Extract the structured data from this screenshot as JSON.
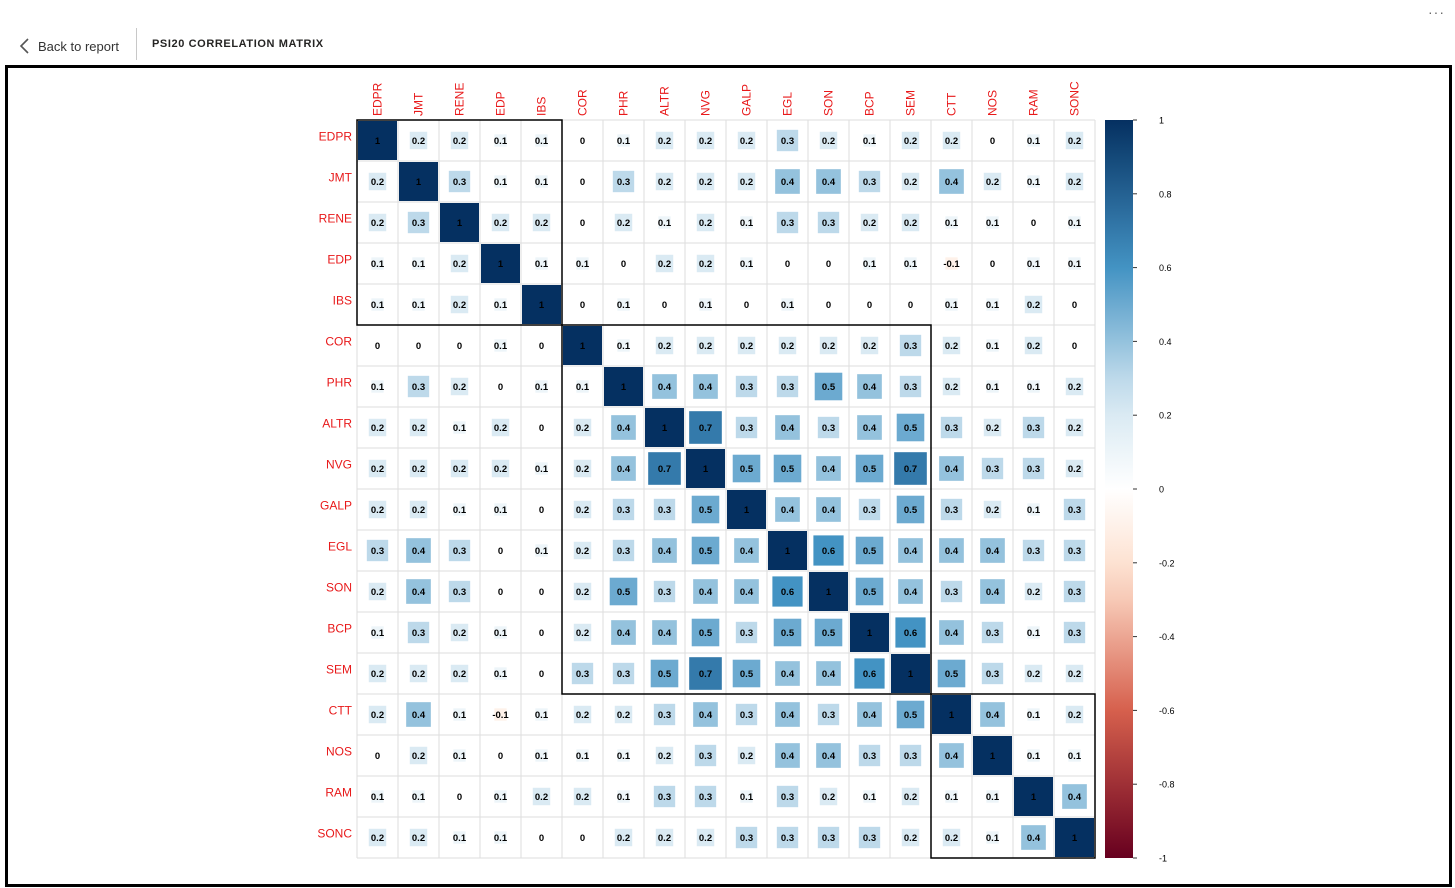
{
  "header": {
    "back_label": "Back to report",
    "title": "PSI20 CORRELATION MATRIX",
    "more_label": "···"
  },
  "chart_data": {
    "type": "heatmap",
    "variables": [
      "EDPR",
      "JMT",
      "RENE",
      "EDP",
      "IBS",
      "COR",
      "PHR",
      "ALTR",
      "NVG",
      "GALP",
      "EGL",
      "SON",
      "BCP",
      "SEM",
      "CTT",
      "NOS",
      "RAM",
      "SONC"
    ],
    "matrix": [
      [
        1,
        0.2,
        0.2,
        0.1,
        0.1,
        0,
        0.1,
        0.2,
        0.2,
        0.2,
        0.3,
        0.2,
        0.1,
        0.2,
        0.2,
        0,
        0.1,
        0.2
      ],
      [
        0.2,
        1,
        0.3,
        0.1,
        0.1,
        0,
        0.3,
        0.2,
        0.2,
        0.2,
        0.4,
        0.4,
        0.3,
        0.2,
        0.4,
        0.2,
        0.1,
        0.2
      ],
      [
        0.2,
        0.3,
        1,
        0.2,
        0.2,
        0,
        0.2,
        0.1,
        0.2,
        0.1,
        0.3,
        0.3,
        0.2,
        0.2,
        0.1,
        0.1,
        0,
        0.1
      ],
      [
        0.1,
        0.1,
        0.2,
        1,
        0.1,
        0.1,
        0,
        0.2,
        0.2,
        0.1,
        0,
        0,
        0.1,
        0.1,
        -0.1,
        0,
        0.1,
        0.1
      ],
      [
        0.1,
        0.1,
        0.2,
        0.1,
        1,
        0,
        0.1,
        0,
        0.1,
        0,
        0.1,
        0,
        0,
        0,
        0.1,
        0.1,
        0.2,
        0
      ],
      [
        0,
        0,
        0,
        0.1,
        0,
        1,
        0.1,
        0.2,
        0.2,
        0.2,
        0.2,
        0.2,
        0.2,
        0.3,
        0.2,
        0.1,
        0.2,
        0
      ],
      [
        0.1,
        0.3,
        0.2,
        0,
        0.1,
        0.1,
        1,
        0.4,
        0.4,
        0.3,
        0.3,
        0.5,
        0.4,
        0.3,
        0.2,
        0.1,
        0.1,
        0.2
      ],
      [
        0.2,
        0.2,
        0.1,
        0.2,
        0,
        0.2,
        0.4,
        1,
        0.7,
        0.3,
        0.4,
        0.3,
        0.4,
        0.5,
        0.3,
        0.2,
        0.3,
        0.2
      ],
      [
        0.2,
        0.2,
        0.2,
        0.2,
        0.1,
        0.2,
        0.4,
        0.7,
        1,
        0.5,
        0.5,
        0.4,
        0.5,
        0.7,
        0.4,
        0.3,
        0.3,
        0.2
      ],
      [
        0.2,
        0.2,
        0.1,
        0.1,
        0,
        0.2,
        0.3,
        0.3,
        0.5,
        1,
        0.4,
        0.4,
        0.3,
        0.5,
        0.3,
        0.2,
        0.1,
        0.3
      ],
      [
        0.3,
        0.4,
        0.3,
        0,
        0.1,
        0.2,
        0.3,
        0.4,
        0.5,
        0.4,
        1,
        0.6,
        0.5,
        0.4,
        0.4,
        0.4,
        0.3,
        0.3
      ],
      [
        0.2,
        0.4,
        0.3,
        0,
        0,
        0.2,
        0.5,
        0.3,
        0.4,
        0.4,
        0.6,
        1,
        0.5,
        0.4,
        0.3,
        0.4,
        0.2,
        0.3
      ],
      [
        0.1,
        0.3,
        0.2,
        0.1,
        0,
        0.2,
        0.4,
        0.4,
        0.5,
        0.3,
        0.5,
        0.5,
        1,
        0.6,
        0.4,
        0.3,
        0.1,
        0.3
      ],
      [
        0.2,
        0.2,
        0.2,
        0.1,
        0,
        0.3,
        0.3,
        0.5,
        0.7,
        0.5,
        0.4,
        0.4,
        0.6,
        1,
        0.5,
        0.3,
        0.2,
        0.2
      ],
      [
        0.2,
        0.4,
        0.1,
        -0.1,
        0.1,
        0.2,
        0.2,
        0.3,
        0.4,
        0.3,
        0.4,
        0.3,
        0.4,
        0.5,
        1,
        0.4,
        0.1,
        0.2
      ],
      [
        0,
        0.2,
        0.1,
        0,
        0.1,
        0.1,
        0.1,
        0.2,
        0.3,
        0.2,
        0.4,
        0.4,
        0.3,
        0.3,
        0.4,
        1,
        0.1,
        0.1
      ],
      [
        0.1,
        0.1,
        0,
        0.1,
        0.2,
        0.2,
        0.1,
        0.3,
        0.3,
        0.1,
        0.3,
        0.2,
        0.1,
        0.2,
        0.1,
        0.1,
        1,
        0.4
      ],
      [
        0.2,
        0.2,
        0.1,
        0.1,
        0,
        0,
        0.2,
        0.2,
        0.2,
        0.3,
        0.3,
        0.3,
        0.3,
        0.2,
        0.2,
        0.1,
        0.4,
        1
      ]
    ],
    "clusters": [
      [
        0,
        4
      ],
      [
        5,
        13
      ],
      [
        14,
        17
      ]
    ],
    "colorbar_ticks": [
      "1",
      "0.8",
      "0.6",
      "0.4",
      "0.2",
      "0",
      "-0.2",
      "-0.4",
      "-0.6",
      "-0.8",
      "-1"
    ],
    "value_range": [
      -1,
      1
    ],
    "label_color": "#e8191a",
    "colors": {
      "negative_strong": "#67001f",
      "negative_mid": "#d6604d",
      "negative_light": "#fddbc7",
      "neutral": "#ffffff",
      "positive_light": "#d1e5f0",
      "positive_mid": "#4393c3",
      "positive_strong": "#053061"
    }
  }
}
